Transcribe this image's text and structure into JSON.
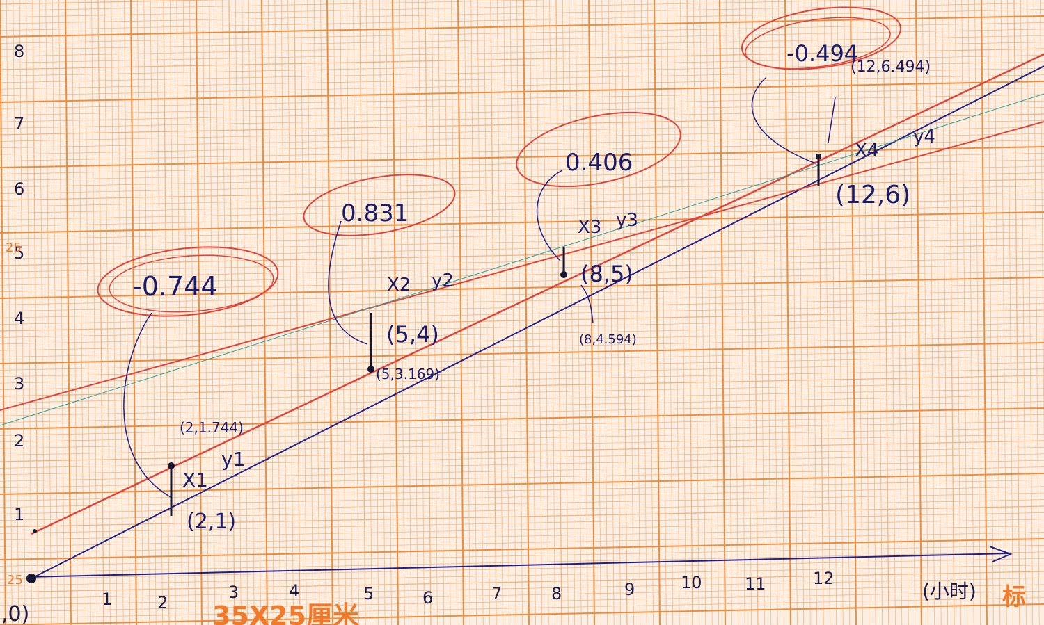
{
  "paper": {
    "grid_color": "#f08c3a",
    "minor_grid_color": "#f6b27a",
    "paper_color": "#fbeee2",
    "footer_label": "35X25厘米",
    "corner_label": "标",
    "side_label": "25",
    "corner_number": "25"
  },
  "ink": {
    "blue": "#1f1f8a",
    "red": "#e0433a",
    "dark": "#161630"
  },
  "axes": {
    "x_ticks": [
      "1",
      "2",
      "3",
      "4",
      "5",
      "6",
      "7",
      "8",
      "9",
      "10",
      "11",
      "12"
    ],
    "y_ticks": [
      "1",
      "2",
      "3",
      "4",
      "5",
      "6",
      "7",
      "8"
    ],
    "origin_label": ",0)",
    "x_unit": "(小时)"
  },
  "annotations": {
    "point1": "(2,1)",
    "point1_fit": "(2,1.744)",
    "point1_labels": [
      "X1",
      "y1"
    ],
    "resid1": "-0.744",
    "point2": "(5,4)",
    "point2_fit": "(5,3.169)",
    "point2_labels": [
      "X2",
      "y2"
    ],
    "resid2": "0.831",
    "point3": "(8,5)",
    "point3_fit": "(8,4.594)",
    "point3_labels": [
      "X3",
      "y3"
    ],
    "resid3": "0.406",
    "point4": "(12,6)",
    "point4_fit": "(12,6.494)",
    "point4_labels": [
      "X4",
      "y4"
    ],
    "resid4": "-0.494"
  }
}
